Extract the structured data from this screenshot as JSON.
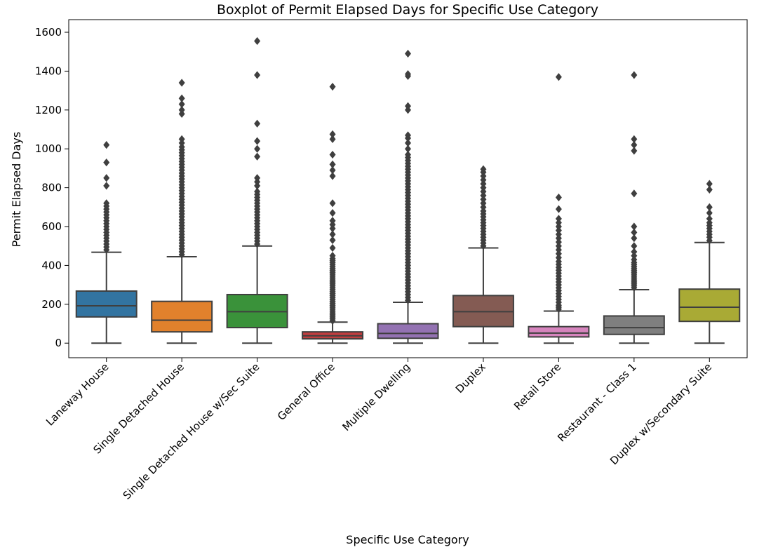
{
  "chart_data": {
    "type": "box",
    "title": "Boxplot of Permit Elapsed Days for Specific Use Category",
    "xlabel": "Specific Use Category",
    "ylabel": "Permit Elapsed Days",
    "ylim": [
      -75,
      1665
    ],
    "yticks": [
      0,
      200,
      400,
      600,
      800,
      1000,
      1200,
      1400,
      1600
    ],
    "grid": false,
    "legend": "none",
    "categories": [
      "Laneway House",
      "Single Detached House",
      "Single Detached House w/Sec Suite",
      "General Office",
      "Multiple Dwelling",
      "Duplex",
      "Retail Store",
      "Restaurant - Class 1",
      "Duplex w/Secondary Suite"
    ],
    "colors": [
      "#3274a1",
      "#e1812c",
      "#3a923a",
      "#c03d3e",
      "#9372b2",
      "#845b53",
      "#d684bd",
      "#7f7f7f",
      "#a9aa35"
    ],
    "edge_color": "#3f3f3f",
    "boxes": [
      {
        "min": 0,
        "q1": 135,
        "median": 192,
        "q3": 268,
        "max": 468,
        "outliers": [
          480,
          495,
          510,
          525,
          540,
          555,
          570,
          585,
          600,
          615,
          630,
          645,
          660,
          675,
          690,
          705,
          720,
          810,
          850,
          930,
          1020
        ]
      },
      {
        "min": 0,
        "q1": 58,
        "median": 118,
        "q3": 215,
        "max": 445,
        "outliers": [
          455,
          470,
          485,
          500,
          515,
          530,
          545,
          560,
          575,
          590,
          605,
          620,
          635,
          650,
          665,
          680,
          695,
          710,
          725,
          740,
          755,
          770,
          785,
          800,
          815,
          830,
          845,
          860,
          875,
          890,
          905,
          920,
          935,
          950,
          965,
          980,
          995,
          1010,
          1030,
          1050,
          1180,
          1200,
          1230,
          1260,
          1340
        ]
      },
      {
        "min": 0,
        "q1": 80,
        "median": 162,
        "q3": 250,
        "max": 500,
        "outliers": [
          510,
          525,
          540,
          555,
          570,
          585,
          600,
          615,
          630,
          645,
          660,
          675,
          690,
          705,
          720,
          735,
          750,
          765,
          780,
          810,
          830,
          850,
          960,
          1000,
          1040,
          1130,
          1380,
          1555
        ]
      },
      {
        "min": 0,
        "q1": 22,
        "median": 38,
        "q3": 58,
        "max": 108,
        "outliers": [
          115,
          125,
          135,
          145,
          155,
          165,
          175,
          185,
          195,
          205,
          215,
          225,
          235,
          245,
          255,
          265,
          275,
          285,
          295,
          305,
          315,
          325,
          335,
          345,
          355,
          365,
          375,
          385,
          395,
          405,
          415,
          425,
          435,
          450,
          490,
          530,
          560,
          590,
          610,
          630,
          670,
          720,
          860,
          890,
          920,
          970,
          1050,
          1075,
          1320
        ]
      },
      {
        "min": 0,
        "q1": 25,
        "median": 50,
        "q3": 100,
        "max": 210,
        "outliers": [
          220,
          235,
          250,
          265,
          280,
          295,
          310,
          325,
          340,
          355,
          370,
          385,
          400,
          415,
          430,
          445,
          460,
          475,
          490,
          505,
          520,
          535,
          550,
          565,
          580,
          595,
          610,
          625,
          640,
          655,
          670,
          685,
          700,
          715,
          730,
          745,
          760,
          775,
          790,
          805,
          820,
          835,
          850,
          865,
          880,
          895,
          910,
          925,
          940,
          955,
          970,
          1000,
          1030,
          1055,
          1070,
          1200,
          1220,
          1375,
          1385,
          1490
        ]
      },
      {
        "min": 0,
        "q1": 85,
        "median": 162,
        "q3": 245,
        "max": 490,
        "outliers": [
          500,
          515,
          530,
          545,
          560,
          575,
          590,
          605,
          620,
          635,
          650,
          665,
          680,
          700,
          720,
          740,
          760,
          780,
          800,
          820,
          840,
          860,
          880,
          895
        ]
      },
      {
        "min": 0,
        "q1": 32,
        "median": 52,
        "q3": 85,
        "max": 165,
        "outliers": [
          175,
          185,
          195,
          210,
          225,
          240,
          255,
          270,
          285,
          300,
          315,
          330,
          345,
          360,
          375,
          390,
          405,
          420,
          440,
          460,
          480,
          500,
          520,
          540,
          560,
          580,
          600,
          620,
          640,
          690,
          750,
          1370
        ]
      },
      {
        "min": 0,
        "q1": 45,
        "median": 80,
        "q3": 140,
        "max": 275,
        "outliers": [
          285,
          295,
          305,
          315,
          325,
          335,
          345,
          355,
          365,
          375,
          385,
          395,
          405,
          415,
          430,
          450,
          470,
          500,
          540,
          570,
          600,
          770,
          990,
          1020,
          1050,
          1380
        ]
      },
      {
        "min": 0,
        "q1": 112,
        "median": 185,
        "q3": 278,
        "max": 518,
        "outliers": [
          528,
          545,
          560,
          575,
          590,
          605,
          620,
          640,
          670,
          700,
          790,
          820
        ]
      }
    ]
  }
}
